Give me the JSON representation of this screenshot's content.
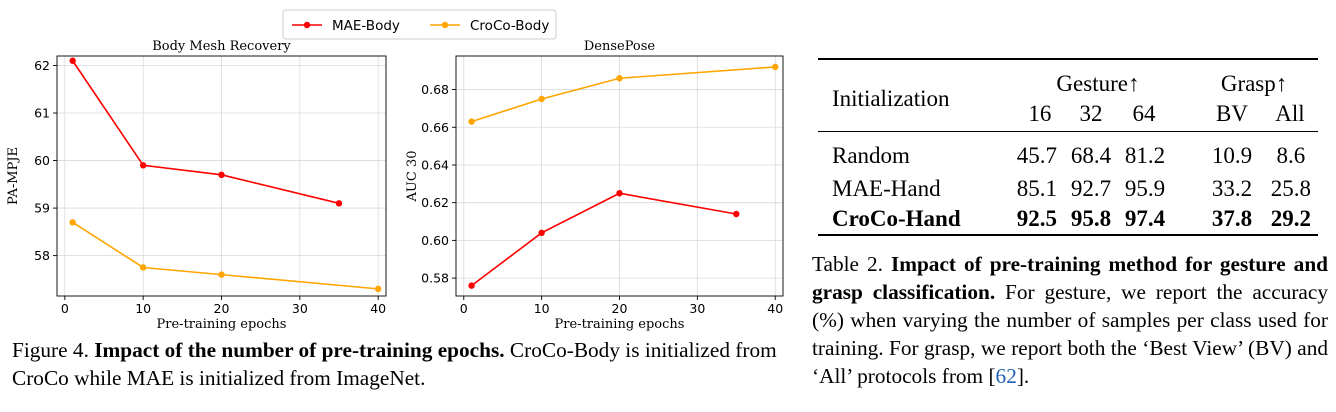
{
  "legend": [
    {
      "label": "MAE-Body",
      "color": "#ff0000"
    },
    {
      "label": "CroCo-Body",
      "color": "#ffa500"
    }
  ],
  "chart_data": [
    {
      "type": "line",
      "title": "Body Mesh Recovery",
      "xlabel": "Pre-training epochs",
      "ylabel": "PA-MPJE",
      "xlim": [
        -1,
        41
      ],
      "ylim": [
        57.15,
        62.2
      ],
      "xticks": [
        0,
        10,
        20,
        30,
        40
      ],
      "yticks": [
        58,
        59,
        60,
        61,
        62
      ],
      "grid": true,
      "series": [
        {
          "name": "MAE-Body",
          "color": "#ff0000",
          "x": [
            1,
            10,
            20,
            35
          ],
          "y": [
            62.1,
            59.9,
            59.7,
            59.1
          ]
        },
        {
          "name": "CroCo-Body",
          "color": "#ffa500",
          "x": [
            1,
            10,
            20,
            40
          ],
          "y": [
            58.7,
            57.75,
            57.6,
            57.3
          ]
        }
      ]
    },
    {
      "type": "line",
      "title": "DensePose",
      "xlabel": "Pre-training epochs",
      "ylabel": "AUC 30",
      "xlim": [
        -1,
        41
      ],
      "ylim": [
        0.5705,
        0.6978
      ],
      "xticks": [
        0,
        10,
        20,
        30,
        40
      ],
      "yticks": [
        0.58,
        0.6,
        0.62,
        0.64,
        0.66,
        0.68
      ],
      "ytick_labels": [
        "0.58",
        "0.60",
        "0.62",
        "0.64",
        "0.66",
        "0.68"
      ],
      "grid": true,
      "series": [
        {
          "name": "MAE-Body",
          "color": "#ff0000",
          "x": [
            1,
            10,
            20,
            35
          ],
          "y": [
            0.576,
            0.604,
            0.625,
            0.614
          ]
        },
        {
          "name": "CroCo-Body",
          "color": "#ffa500",
          "x": [
            1,
            10,
            20,
            40
          ],
          "y": [
            0.663,
            0.675,
            0.686,
            0.692
          ]
        }
      ]
    }
  ],
  "figure_caption": {
    "label": "Figure 4.",
    "bold": "Impact of the number of pre-training epochs.",
    "rest": "CroCo-Body is initialized from CroCo while MAE is initialized from ImageNet."
  },
  "table": {
    "col_init": "Initialization",
    "group_gesture": "Gesture↑",
    "group_grasp": "Grasp↑",
    "sub_headers": [
      "16",
      "32",
      "64",
      "BV",
      "All"
    ],
    "rows": [
      {
        "name": "Random",
        "values": [
          "45.7",
          "68.4",
          "81.2",
          "10.9",
          "8.6"
        ],
        "bold": false
      },
      {
        "name": "MAE-Hand",
        "values": [
          "85.1",
          "92.7",
          "95.9",
          "33.2",
          "25.8"
        ],
        "bold": false
      },
      {
        "name": "CroCo-Hand",
        "values": [
          "92.5",
          "95.8",
          "97.4",
          "37.8",
          "29.2"
        ],
        "bold": true
      }
    ]
  },
  "table_caption": {
    "label": "Table 2.",
    "bold": "Impact of pre-training method for gesture and grasp classification.",
    "rest_a": "For gesture, we report the accuracy (%) when varying the number of samples per class used for training. For grasp, we report both the ‘Best View’ (BV) and ‘All’ protocols from [",
    "cite": "62",
    "rest_b": "]."
  }
}
